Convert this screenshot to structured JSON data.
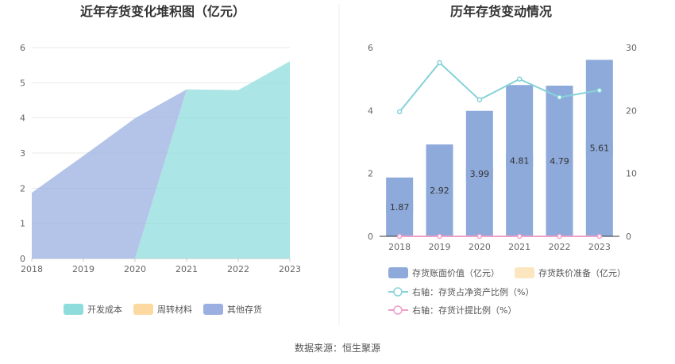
{
  "source_text": "数据来源：恒生聚源",
  "colors": {
    "kaifa": "#8fdcdc",
    "zhouzhuan": "#fcd9a0",
    "qita": "#9bb0e0",
    "bar": "#8eaadb",
    "dieprice": "#fce6c0",
    "ratio_line": "#86d2d8",
    "provision_line": "#ee9fca"
  },
  "chart_data": [
    {
      "type": "area",
      "title": "近年存货变化堆积图（亿元）",
      "categories": [
        "2018",
        "2019",
        "2020",
        "2021",
        "2022",
        "2023"
      ],
      "ylim": [
        0,
        6
      ],
      "yticks": [
        "0",
        "1",
        "2",
        "3",
        "4",
        "5",
        "6"
      ],
      "stacked": true,
      "grid": true,
      "legend_position": "bottom",
      "series": [
        {
          "name": "开发成本",
          "values": [
            0,
            0,
            0,
            4.81,
            4.79,
            5.61
          ]
        },
        {
          "name": "周转材料",
          "values": [
            0,
            0,
            0,
            0,
            0,
            0
          ]
        },
        {
          "name": "其他存货",
          "values": [
            1.87,
            2.92,
            3.99,
            0,
            0,
            0
          ]
        }
      ]
    },
    {
      "type": "bar",
      "title": "历年存货变动情况",
      "categories": [
        "2018",
        "2019",
        "2020",
        "2021",
        "2022",
        "2023"
      ],
      "ylim": [
        0,
        6
      ],
      "yticks": [
        "0",
        "2",
        "4",
        "6"
      ],
      "y2lim": [
        0,
        30
      ],
      "y2ticks": [
        "0",
        "10",
        "20",
        "30"
      ],
      "legend_position": "bottom",
      "series": [
        {
          "name": "存货账面价值（亿元）",
          "values": [
            1.87,
            2.92,
            3.99,
            4.81,
            4.79,
            5.61
          ],
          "labels": [
            "1.87",
            "2.92",
            "3.99",
            "4.81",
            "4.79",
            "5.61"
          ]
        },
        {
          "name": "存货跌价准备（亿元）",
          "values": [
            0,
            0,
            0,
            0,
            0,
            0
          ]
        },
        {
          "name": "右轴：存货占净资产比例（%）",
          "axis": "right",
          "type": "line",
          "values": [
            19.8,
            27.6,
            21.7,
            25.0,
            22.1,
            23.2
          ]
        },
        {
          "name": "右轴：存货计提比例（%）",
          "axis": "right",
          "type": "line",
          "values": [
            0,
            0,
            0,
            0,
            0,
            0
          ]
        }
      ]
    }
  ]
}
